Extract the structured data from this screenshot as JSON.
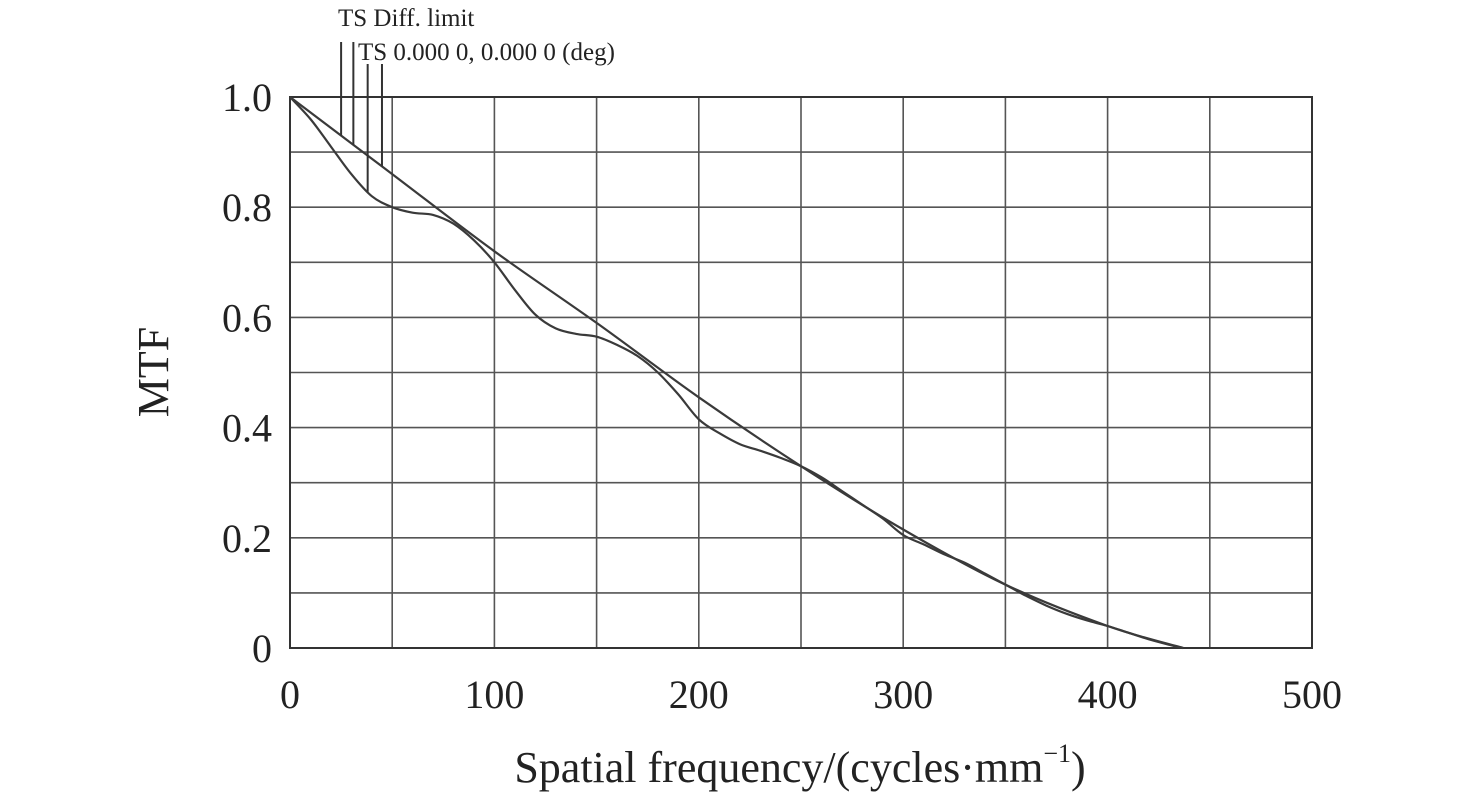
{
  "chart_data": {
    "type": "line",
    "xlabel": "Spatial frequency/(cycles·mm",
    "xlabel_sup": "−1",
    "xlabel_close": ")",
    "ylabel": "MTF",
    "xlim": [
      0,
      500
    ],
    "ylim": [
      0,
      1.0
    ],
    "x_ticks": [
      0,
      100,
      200,
      300,
      400,
      500
    ],
    "x_tick_labels": [
      "0",
      "100",
      "200",
      "300",
      "400",
      "500"
    ],
    "y_ticks": [
      0,
      0.2,
      0.4,
      0.6,
      0.8,
      1.0
    ],
    "y_tick_labels": [
      "0",
      "0.2",
      "0.4",
      "0.6",
      "0.8",
      "1.0"
    ],
    "grid_x_step": 50,
    "grid_y_step": 0.1,
    "grid": true,
    "legend_position": "top-left",
    "legend": [
      "TS Diff. limit",
      "TS 0.000 0, 0.000 0 (deg)"
    ],
    "series": [
      {
        "name": "TS Diff. limit",
        "x": [
          0,
          50,
          100,
          150,
          200,
          250,
          300,
          350,
          400,
          437
        ],
        "values": [
          1.0,
          0.86,
          0.72,
          0.59,
          0.455,
          0.33,
          0.215,
          0.115,
          0.04,
          0.0
        ]
      },
      {
        "name": "TS 0.000 0, 0.000 0 (deg)",
        "x": [
          0,
          10,
          20,
          30,
          40,
          50,
          60,
          70,
          80,
          90,
          100,
          110,
          120,
          130,
          140,
          150,
          160,
          170,
          180,
          190,
          200,
          210,
          220,
          230,
          240,
          250,
          260,
          270,
          280,
          290,
          300,
          310,
          320,
          330,
          340,
          350,
          360,
          370,
          380,
          390,
          400,
          410,
          420,
          430,
          437
        ],
        "values": [
          1.0,
          0.96,
          0.91,
          0.86,
          0.82,
          0.8,
          0.79,
          0.786,
          0.77,
          0.74,
          0.7,
          0.65,
          0.605,
          0.58,
          0.57,
          0.565,
          0.55,
          0.53,
          0.5,
          0.46,
          0.415,
          0.39,
          0.37,
          0.358,
          0.345,
          0.33,
          0.31,
          0.285,
          0.26,
          0.235,
          0.205,
          0.188,
          0.17,
          0.155,
          0.135,
          0.115,
          0.095,
          0.077,
          0.062,
          0.05,
          0.04,
          0.028,
          0.016,
          0.006,
          0.0
        ]
      }
    ]
  }
}
